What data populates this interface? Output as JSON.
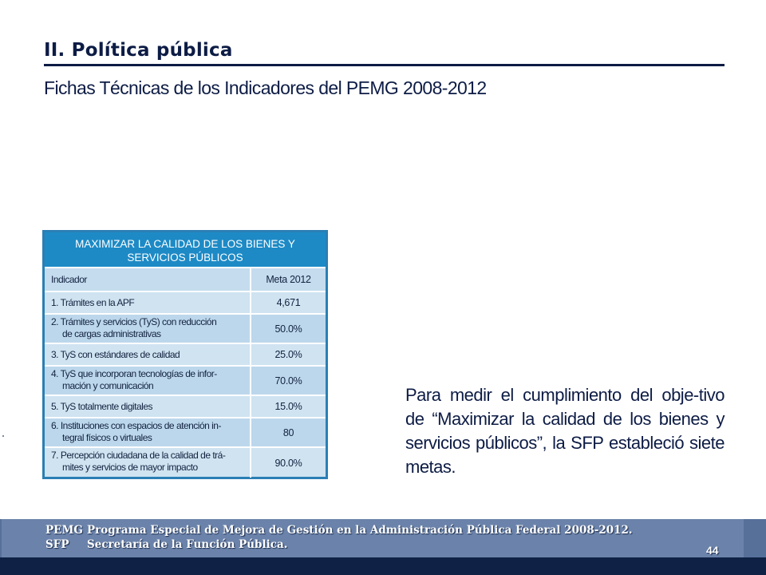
{
  "header": {
    "title": "II. Política pública",
    "subtitle": "Fichas Técnicas de los Indicadores del PEMG 2008-2012"
  },
  "table": {
    "title_line1": "MAXIMIZAR LA CALIDAD DE LOS BIENES Y",
    "title_line2": "SERVICIOS PÚBLICOS",
    "col_indicator": "Indicador",
    "col_goal": "Meta 2012",
    "rows": [
      {
        "line1": "1. Trámites en la APF",
        "line2": "",
        "value": "4,671"
      },
      {
        "line1": "2. Trámites y servicios (TyS) con reducción",
        "line2": "de cargas administrativas",
        "value": "50.0%"
      },
      {
        "line1": "3. TyS con estándares de calidad",
        "line2": "",
        "value": "25.0%"
      },
      {
        "line1": "4. TyS que incorporan tecnologías de infor-",
        "line2": "mación y comunicación",
        "value": "70.0%"
      },
      {
        "line1": "5. TyS totalmente digitales",
        "line2": "",
        "value": "15.0%"
      },
      {
        "line1": "6. Instituciones con espacios de atención in-",
        "line2": "tegral físicos o virtuales",
        "value": "80"
      },
      {
        "line1": "7. Percepción ciudadana de la calidad de trá-",
        "line2": "mites y servicios de mayor impacto",
        "value": "90.0%"
      }
    ]
  },
  "paragraph": "Para medir el cumplimiento del obje-tivo de “Maximizar la calidad de los bienes y servicios públicos”, la SFP estableció siete metas.",
  "footer": {
    "line1_abbr": "PEMG",
    "line1_text": "Programa Especial de Mejora de Gestión en la Administración Pública Federal 2008-2012.",
    "line2_abbr": "SFP",
    "line2_text": "Secretaría de la Función Pública.",
    "page_number": "44"
  },
  "colors": {
    "title": "#0d1c45",
    "table_header": "#1d8ac6",
    "table_cell": "#cfe3f1",
    "footer_band": "#6b83aa",
    "footer_bottom": "#0f2144"
  }
}
